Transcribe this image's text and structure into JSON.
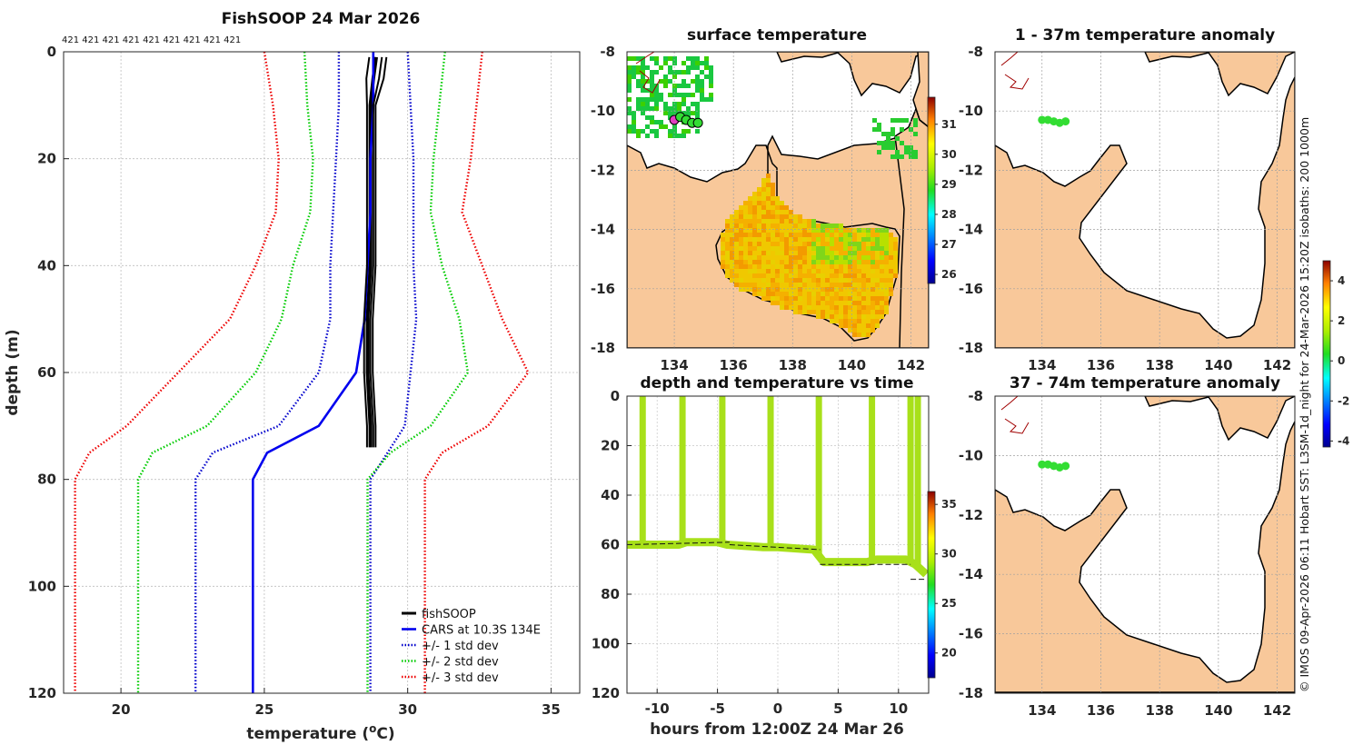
{
  "chart_data": [
    {
      "type": "line",
      "title": "FishSOOP 24 Mar 2026",
      "xlabel": "temperature (°C)",
      "ylabel": "depth (m)",
      "xlim": [
        18,
        36
      ],
      "ylim": [
        120,
        0
      ],
      "x_ticks": [
        "20",
        "25",
        "30",
        "35"
      ],
      "y_ticks": [
        "0",
        "20",
        "40",
        "60",
        "80",
        "100",
        "120"
      ],
      "top_annotation": "421 421 421 421 421 421 421 421 421",
      "legend": [
        "fishSOOP",
        "CARS at 10.3S 134E",
        "+/- 1 std dev",
        "+/- 2 std dev",
        "+/- 3 std dev"
      ],
      "series": [
        {
          "name": "fishSOOP",
          "color": "#000000",
          "style": "solid",
          "points": [
            [
              28.9,
              1
            ],
            [
              28.8,
              5
            ],
            [
              28.7,
              10
            ],
            [
              28.7,
              20
            ],
            [
              28.7,
              30
            ],
            [
              28.7,
              40
            ],
            [
              28.6,
              50
            ],
            [
              28.6,
              60
            ],
            [
              28.7,
              70
            ],
            [
              28.7,
              74
            ]
          ]
        },
        {
          "name": "CARS at 10.3S 134E",
          "color": "#0000ee",
          "style": "solid",
          "points": [
            [
              28.8,
              0
            ],
            [
              28.8,
              10
            ],
            [
              28.7,
              20
            ],
            [
              28.7,
              30
            ],
            [
              28.6,
              40
            ],
            [
              28.5,
              50
            ],
            [
              28.2,
              60
            ],
            [
              26.9,
              70
            ],
            [
              25.1,
              75
            ],
            [
              24.6,
              80
            ],
            [
              24.6,
              100
            ],
            [
              24.6,
              120
            ]
          ]
        },
        {
          "name": "+1 std",
          "color": "#0000cc",
          "style": "dotted",
          "points": [
            [
              30.0,
              0
            ],
            [
              30.1,
              10
            ],
            [
              30.2,
              20
            ],
            [
              30.2,
              30
            ],
            [
              30.2,
              40
            ],
            [
              30.3,
              50
            ],
            [
              30.1,
              60
            ],
            [
              29.9,
              70
            ],
            [
              28.7,
              80
            ],
            [
              28.7,
              100
            ],
            [
              28.7,
              120
            ]
          ]
        },
        {
          "name": "-1 std",
          "color": "#0000cc",
          "style": "dotted",
          "points": [
            [
              27.6,
              0
            ],
            [
              27.6,
              10
            ],
            [
              27.5,
              20
            ],
            [
              27.4,
              30
            ],
            [
              27.3,
              40
            ],
            [
              27.3,
              50
            ],
            [
              26.9,
              60
            ],
            [
              25.5,
              70
            ],
            [
              23.2,
              75
            ],
            [
              22.6,
              80
            ],
            [
              22.6,
              100
            ],
            [
              22.6,
              120
            ]
          ]
        },
        {
          "name": "+2 std",
          "color": "#00cc00",
          "style": "dotted",
          "points": [
            [
              31.3,
              0
            ],
            [
              31.1,
              10
            ],
            [
              30.9,
              20
            ],
            [
              30.8,
              30
            ],
            [
              31.2,
              40
            ],
            [
              31.8,
              50
            ],
            [
              32.1,
              60
            ],
            [
              30.8,
              70
            ],
            [
              29.4,
              75
            ],
            [
              28.6,
              80
            ],
            [
              28.6,
              100
            ],
            [
              28.6,
              120
            ]
          ]
        },
        {
          "name": "-2 std",
          "color": "#00cc00",
          "style": "dotted",
          "points": [
            [
              26.4,
              0
            ],
            [
              26.5,
              10
            ],
            [
              26.7,
              20
            ],
            [
              26.6,
              30
            ],
            [
              26.0,
              40
            ],
            [
              25.6,
              50
            ],
            [
              24.7,
              60
            ],
            [
              23.0,
              70
            ],
            [
              21.1,
              75
            ],
            [
              20.6,
              80
            ],
            [
              20.6,
              100
            ],
            [
              20.6,
              120
            ]
          ]
        },
        {
          "name": "+3 std",
          "color": "#ee0000",
          "style": "dotted",
          "points": [
            [
              32.6,
              0
            ],
            [
              32.4,
              10
            ],
            [
              32.2,
              20
            ],
            [
              31.9,
              30
            ],
            [
              32.6,
              40
            ],
            [
              33.3,
              50
            ],
            [
              34.2,
              60
            ],
            [
              32.8,
              70
            ],
            [
              31.2,
              75
            ],
            [
              30.6,
              80
            ],
            [
              30.6,
              100
            ],
            [
              30.6,
              120
            ]
          ]
        },
        {
          "name": "-3 std",
          "color": "#ee0000",
          "style": "dotted",
          "points": [
            [
              25.0,
              0
            ],
            [
              25.3,
              10
            ],
            [
              25.5,
              20
            ],
            [
              25.4,
              30
            ],
            [
              24.7,
              40
            ],
            [
              23.8,
              50
            ],
            [
              22.0,
              60
            ],
            [
              20.2,
              70
            ],
            [
              18.9,
              75
            ],
            [
              18.4,
              80
            ],
            [
              18.4,
              100
            ],
            [
              18.4,
              120
            ]
          ]
        }
      ]
    },
    {
      "type": "heatmap",
      "title": "surface temperature",
      "xlim": [
        132.4,
        142.6
      ],
      "ylim": [
        -18,
        -8
      ],
      "x_ticks": [
        "134",
        "136",
        "138",
        "140",
        "142"
      ],
      "y_ticks": [
        "-8",
        "-10",
        "-12",
        "-14",
        "-16",
        "-18"
      ],
      "colorbar_range": [
        25.7,
        31.9
      ],
      "colorbar_ticks": [
        "26",
        "27",
        "28",
        "29",
        "30",
        "31"
      ],
      "track_points": [
        [
          134.0,
          -10.3
        ],
        [
          134.2,
          -10.2
        ],
        [
          134.4,
          -10.3
        ],
        [
          134.6,
          -10.4
        ],
        [
          134.8,
          -10.4
        ]
      ]
    },
    {
      "type": "scatter",
      "title": "1 - 37m temperature anomaly",
      "xlim": [
        132.4,
        142.6
      ],
      "ylim": [
        -18,
        -8
      ],
      "x_ticks": [
        "134",
        "136",
        "138",
        "140",
        "142"
      ],
      "y_ticks": [
        "-8",
        "-10",
        "-12",
        "-14",
        "-16",
        "-18"
      ],
      "points": [
        [
          134.0,
          -10.3
        ],
        [
          134.2,
          -10.3
        ],
        [
          134.4,
          -10.35
        ],
        [
          134.6,
          -10.4
        ],
        [
          134.8,
          -10.35
        ]
      ]
    },
    {
      "type": "line",
      "title": "depth and temperature vs time",
      "xlabel": "hours from 12:00Z 24 Mar 26",
      "xlim": [
        -12.5,
        12.5
      ],
      "ylim": [
        120,
        0
      ],
      "x_ticks": [
        "-10",
        "-5",
        "0",
        "5",
        "10"
      ],
      "y_ticks": [
        "0",
        "20",
        "40",
        "60",
        "80",
        "100",
        "120"
      ],
      "colorbar_range": [
        17.5,
        36.3
      ],
      "colorbar_ticks": [
        "20",
        "25",
        "30",
        "35"
      ],
      "profile_times": [
        -11.2,
        -7.9,
        -4.6,
        -0.6,
        3.4,
        7.8,
        11.0,
        11.6
      ],
      "baseline": [
        [
          -12.5,
          60
        ],
        [
          -8.2,
          60
        ],
        [
          -7.6,
          59
        ],
        [
          -5.0,
          59
        ],
        [
          -4.2,
          60
        ],
        [
          -1.2,
          61
        ],
        [
          0,
          61
        ],
        [
          3.0,
          62
        ],
        [
          3.8,
          67
        ],
        [
          7.4,
          67
        ],
        [
          8.2,
          66
        ],
        [
          10.6,
          66
        ],
        [
          11.4,
          68
        ],
        [
          12.3,
          72
        ]
      ],
      "dashed_segments": [
        [
          [
            -12.5,
            60
          ],
          [
            -4.0,
            59
          ]
        ],
        [
          [
            -4.0,
            60
          ],
          [
            3.5,
            62
          ]
        ],
        [
          [
            3.5,
            68
          ],
          [
            11.0,
            68
          ]
        ],
        [
          [
            11.0,
            74
          ],
          [
            12.3,
            74
          ]
        ]
      ]
    },
    {
      "type": "scatter",
      "title": "37 - 74m temperature anomaly",
      "xlim": [
        132.4,
        142.6
      ],
      "ylim": [
        -18,
        -8
      ],
      "x_ticks": [
        "134",
        "136",
        "138",
        "140",
        "142"
      ],
      "y_ticks": [
        "-8",
        "-10",
        "-12",
        "-14",
        "-16",
        "-18"
      ],
      "colorbar_range": [
        -4.3,
        5.0
      ],
      "colorbar_ticks": [
        "4",
        "2",
        "0",
        "-2",
        "-4"
      ],
      "points": [
        [
          134.0,
          -10.3
        ],
        [
          134.2,
          -10.3
        ],
        [
          134.4,
          -10.35
        ],
        [
          134.6,
          -10.4
        ],
        [
          134.8,
          -10.35
        ]
      ]
    }
  ],
  "side_note": "© IMOS 09-Apr-2026 06:11 Hobart SST: L3SM-1d_night for 24-Mar-2026 15:20Z isobaths: 200  1000m",
  "colors": {
    "land": "#f8c89a",
    "coast": "#000000",
    "grid": "#bdbdbd",
    "track": "#33dd33"
  }
}
